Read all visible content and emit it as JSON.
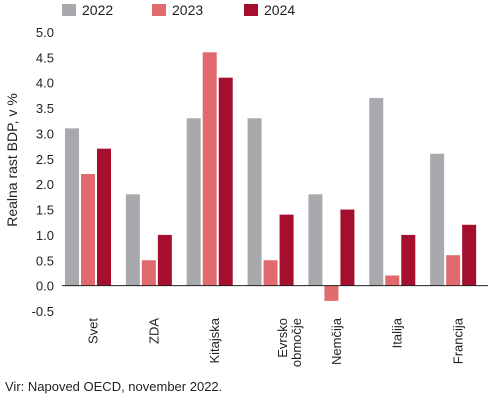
{
  "chart_data": {
    "type": "bar",
    "title": "",
    "xlabel": "",
    "ylabel": "Realna rast BDP, v %",
    "ylim": [
      -0.5,
      5.0
    ],
    "ytick_step": 0.5,
    "yticks": [
      "-0.5",
      "0.0",
      "0.5",
      "1.0",
      "1.5",
      "2.0",
      "2.5",
      "3.0",
      "3.5",
      "4.0",
      "4.5",
      "5.0"
    ],
    "grid": false,
    "legend_position": "top",
    "categories": [
      "Svet",
      "ZDA",
      "Kitajska",
      "Evrsko območje",
      "Nemčija",
      "Italija",
      "Francija"
    ],
    "series": [
      {
        "name": "2022",
        "color": "#a7a9ac",
        "values": [
          3.1,
          1.8,
          3.3,
          3.3,
          1.8,
          3.7,
          2.6
        ]
      },
      {
        "name": "2023",
        "color": "#e06a6e",
        "values": [
          2.2,
          0.5,
          4.6,
          0.5,
          -0.3,
          0.2,
          0.6
        ]
      },
      {
        "name": "2024",
        "color": "#a50f2d",
        "values": [
          2.7,
          1.0,
          4.1,
          1.4,
          1.5,
          1.0,
          1.2
        ]
      }
    ]
  },
  "category_labels": [
    "Svet",
    "ZDA",
    "Kitajska",
    "Evrsko\nobmočje",
    "Nemčija",
    "Italija",
    "Francija"
  ],
  "source": "Vir: Napoved OECD, november 2022."
}
